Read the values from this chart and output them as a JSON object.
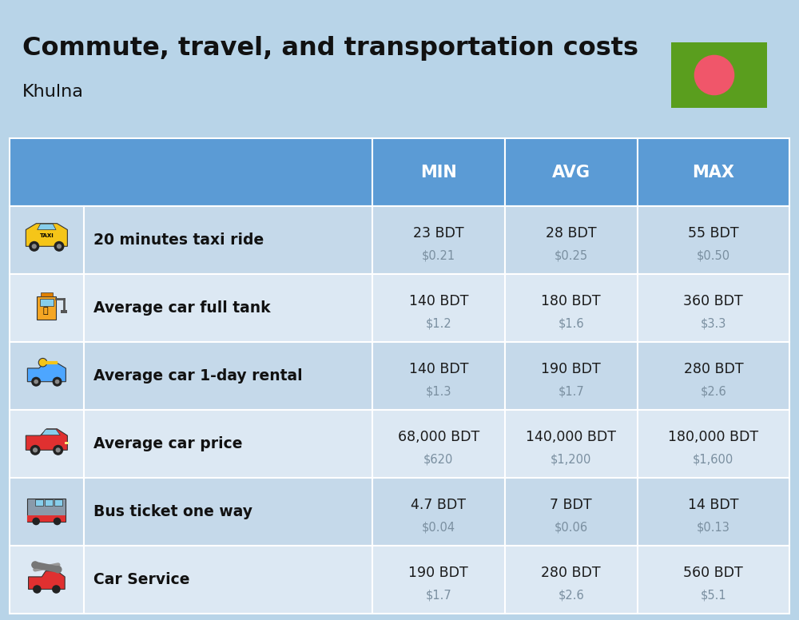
{
  "title": "Commute, travel, and transportation costs",
  "subtitle": "Khulna",
  "background_color": "#b8d4e8",
  "header_bg_color": "#5b9bd5",
  "row_bg_even": "#c5d9ea",
  "row_bg_odd": "#dce8f3",
  "header_text_color": "#ffffff",
  "col_headers": [
    "MIN",
    "AVG",
    "MAX"
  ],
  "rows": [
    {
      "label": "20 minutes taxi ride",
      "min_bdt": "23 BDT",
      "min_usd": "$0.21",
      "avg_bdt": "28 BDT",
      "avg_usd": "$0.25",
      "max_bdt": "55 BDT",
      "max_usd": "$0.50"
    },
    {
      "label": "Average car full tank",
      "min_bdt": "140 BDT",
      "min_usd": "$1.2",
      "avg_bdt": "180 BDT",
      "avg_usd": "$1.6",
      "max_bdt": "360 BDT",
      "max_usd": "$3.3"
    },
    {
      "label": "Average car 1-day rental",
      "min_bdt": "140 BDT",
      "min_usd": "$1.3",
      "avg_bdt": "190 BDT",
      "avg_usd": "$1.7",
      "max_bdt": "280 BDT",
      "max_usd": "$2.6"
    },
    {
      "label": "Average car price",
      "min_bdt": "68,000 BDT",
      "min_usd": "$620",
      "avg_bdt": "140,000 BDT",
      "avg_usd": "$1,200",
      "max_bdt": "180,000 BDT",
      "max_usd": "$1,600"
    },
    {
      "label": "Bus ticket one way",
      "min_bdt": "4.7 BDT",
      "min_usd": "$0.04",
      "avg_bdt": "7 BDT",
      "avg_usd": "$0.06",
      "max_bdt": "14 BDT",
      "max_usd": "$0.13"
    },
    {
      "label": "Car Service",
      "min_bdt": "190 BDT",
      "min_usd": "$1.7",
      "avg_bdt": "280 BDT",
      "avg_usd": "$2.6",
      "max_bdt": "560 BDT",
      "max_usd": "$5.1"
    }
  ],
  "usd_color": "#7a8fa0",
  "bdt_color": "#1a1a1a",
  "label_color": "#111111",
  "flag_green": "#5a9e1e",
  "flag_red": "#f0566a",
  "divider_color": "#ffffff",
  "col_bounds": [
    0.0,
    0.095,
    0.465,
    0.635,
    0.805,
    1.0
  ]
}
